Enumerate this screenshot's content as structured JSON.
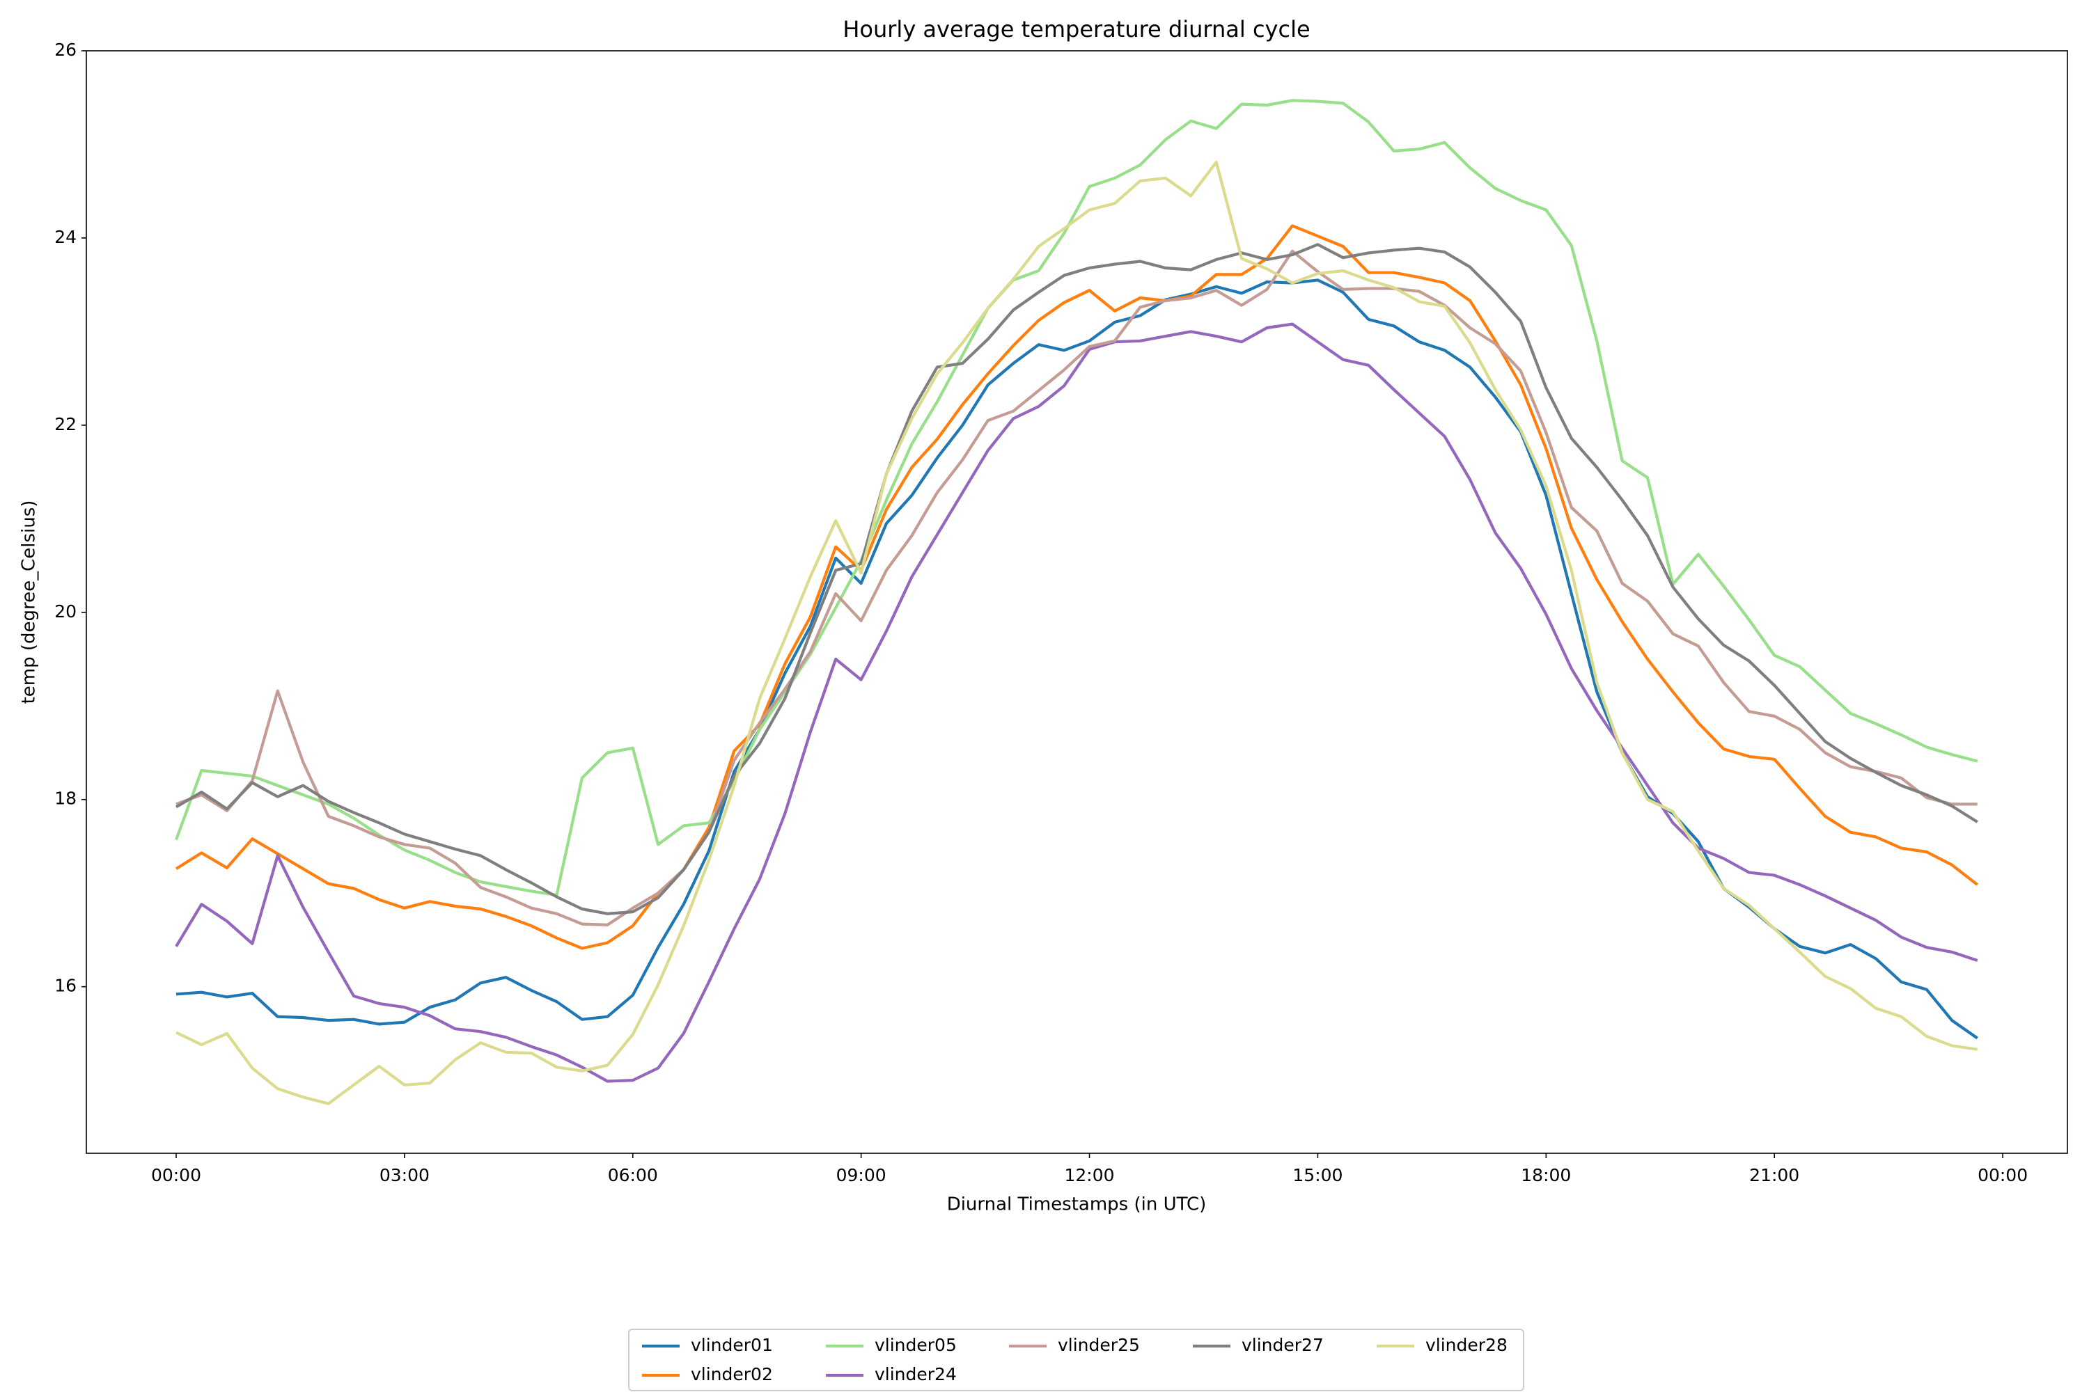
{
  "chart_data": {
    "type": "line",
    "title": "Hourly average temperature diurnal cycle",
    "xlabel": "Diurnal Timestamps (in UTC)",
    "ylabel": "temp (degree_Celsius)",
    "x": [
      0,
      0.333,
      0.667,
      1,
      1.333,
      1.667,
      2,
      2.333,
      2.667,
      3,
      3.333,
      3.667,
      4,
      4.333,
      4.667,
      5,
      5.333,
      5.667,
      6,
      6.333,
      6.667,
      7,
      7.333,
      7.667,
      8,
      8.333,
      8.667,
      9,
      9.333,
      9.667,
      10,
      10.333,
      10.667,
      11,
      11.333,
      11.667,
      12,
      12.333,
      12.667,
      13,
      13.333,
      13.667,
      14,
      14.333,
      14.667,
      15,
      15.333,
      15.667,
      16,
      16.333,
      16.667,
      17,
      17.333,
      17.667,
      18,
      18.333,
      18.667,
      19,
      19.333,
      19.667,
      20,
      20.333,
      20.667,
      21,
      21.333,
      21.667,
      22,
      22.333,
      22.667,
      23,
      23.333,
      23.667
    ],
    "xlim": [
      -1.18,
      24.85
    ],
    "xticks": [
      {
        "value": 0,
        "label": "00:00"
      },
      {
        "value": 3,
        "label": "03:00"
      },
      {
        "value": 6,
        "label": "06:00"
      },
      {
        "value": 9,
        "label": "09:00"
      },
      {
        "value": 12,
        "label": "12:00"
      },
      {
        "value": 15,
        "label": "15:00"
      },
      {
        "value": 18,
        "label": "18:00"
      },
      {
        "value": 21,
        "label": "21:00"
      },
      {
        "value": 24,
        "label": "00:00"
      }
    ],
    "ylim": [
      14.22,
      26
    ],
    "yticks": [
      16,
      18,
      20,
      22,
      24,
      26
    ],
    "grid": false,
    "legend": "below",
    "series": [
      {
        "name": "vlinder01",
        "color": "#1f77b4",
        "values": [
          15.92,
          15.94,
          15.89,
          15.93,
          15.68,
          15.67,
          15.64,
          15.65,
          15.6,
          15.62,
          15.78,
          15.86,
          16.04,
          16.1,
          15.96,
          15.84,
          15.65,
          15.68,
          15.91,
          16.42,
          16.88,
          17.45,
          18.3,
          18.75,
          19.35,
          19.85,
          20.58,
          20.31,
          20.95,
          21.25,
          21.65,
          22.0,
          22.43,
          22.66,
          22.86,
          22.8,
          22.9,
          23.1,
          23.17,
          23.34,
          23.4,
          23.48,
          23.41,
          23.53,
          23.52,
          23.55,
          23.42,
          23.13,
          23.06,
          22.89,
          22.8,
          22.62,
          22.3,
          21.93,
          21.25,
          20.2,
          19.15,
          18.5,
          18.03,
          17.85,
          17.55,
          17.05,
          16.85,
          16.62,
          16.43,
          16.36,
          16.45,
          16.3,
          16.05,
          15.97,
          15.64,
          15.45
        ]
      },
      {
        "name": "vlinder02",
        "color": "#ff7f0e",
        "values": [
          17.26,
          17.43,
          17.27,
          17.58,
          17.42,
          17.26,
          17.1,
          17.05,
          16.93,
          16.84,
          16.91,
          16.86,
          16.83,
          16.75,
          16.65,
          16.52,
          16.41,
          16.47,
          16.65,
          17.0,
          17.25,
          17.7,
          18.52,
          18.8,
          19.45,
          19.95,
          20.7,
          20.45,
          21.1,
          21.55,
          21.85,
          22.22,
          22.55,
          22.85,
          23.12,
          23.31,
          23.44,
          23.22,
          23.36,
          23.33,
          23.38,
          23.61,
          23.61,
          23.78,
          24.13,
          24.02,
          23.91,
          23.63,
          23.63,
          23.58,
          23.52,
          23.33,
          22.9,
          22.43,
          21.75,
          20.9,
          20.35,
          19.9,
          19.5,
          19.15,
          18.82,
          18.54,
          18.46,
          18.43,
          18.12,
          17.82,
          17.65,
          17.6,
          17.48,
          17.44,
          17.3,
          17.09
        ]
      },
      {
        "name": "vlinder05",
        "color": "#98df8a",
        "values": [
          17.57,
          18.31,
          18.28,
          18.25,
          18.15,
          18.05,
          17.95,
          17.8,
          17.62,
          17.46,
          17.35,
          17.22,
          17.12,
          17.07,
          17.02,
          16.98,
          18.23,
          18.5,
          18.55,
          17.52,
          17.72,
          17.75,
          18.2,
          18.75,
          19.15,
          19.55,
          20.05,
          20.55,
          21.2,
          21.8,
          22.25,
          22.75,
          23.25,
          23.55,
          23.65,
          24.05,
          24.55,
          24.64,
          24.78,
          25.05,
          25.25,
          25.17,
          25.43,
          25.42,
          25.47,
          25.46,
          25.44,
          25.24,
          24.93,
          24.95,
          25.02,
          24.75,
          24.53,
          24.4,
          24.3,
          23.92,
          22.9,
          21.62,
          21.44,
          20.3,
          20.62,
          20.28,
          19.92,
          19.54,
          19.42,
          19.17,
          18.92,
          18.81,
          18.69,
          18.56,
          18.48,
          18.41
        ]
      },
      {
        "name": "vlinder24",
        "color": "#9467bd",
        "values": [
          16.43,
          16.88,
          16.7,
          16.46,
          17.4,
          16.85,
          16.37,
          15.9,
          15.82,
          15.78,
          15.69,
          15.55,
          15.52,
          15.46,
          15.36,
          15.27,
          15.14,
          14.99,
          15.0,
          15.13,
          15.5,
          16.05,
          16.62,
          17.15,
          17.85,
          18.72,
          19.5,
          19.28,
          19.8,
          20.38,
          20.83,
          21.28,
          21.73,
          22.07,
          22.2,
          22.42,
          22.81,
          22.89,
          22.9,
          22.95,
          23.0,
          22.95,
          22.89,
          23.04,
          23.08,
          22.89,
          22.7,
          22.64,
          22.38,
          22.13,
          21.88,
          21.42,
          20.85,
          20.47,
          19.98,
          19.4,
          18.95,
          18.55,
          18.15,
          17.75,
          17.48,
          17.37,
          17.22,
          17.19,
          17.09,
          16.97,
          16.84,
          16.71,
          16.53,
          16.42,
          16.37,
          16.28
        ]
      },
      {
        "name": "vlinder25",
        "color": "#c49c94",
        "values": [
          17.95,
          18.05,
          17.88,
          18.2,
          19.16,
          18.4,
          17.82,
          17.72,
          17.6,
          17.52,
          17.48,
          17.32,
          17.06,
          16.96,
          16.84,
          16.78,
          16.67,
          16.66,
          16.84,
          17.0,
          17.25,
          17.65,
          18.42,
          18.82,
          19.18,
          19.58,
          20.2,
          19.91,
          20.45,
          20.82,
          21.28,
          21.63,
          22.05,
          22.15,
          22.37,
          22.59,
          22.84,
          22.9,
          23.26,
          23.33,
          23.36,
          23.44,
          23.28,
          23.45,
          23.86,
          23.64,
          23.45,
          23.46,
          23.46,
          23.43,
          23.28,
          23.04,
          22.87,
          22.58,
          21.92,
          21.12,
          20.87,
          20.31,
          20.12,
          19.77,
          19.64,
          19.25,
          18.94,
          18.89,
          18.75,
          18.5,
          18.35,
          18.3,
          18.23,
          18.02,
          17.95,
          17.95
        ]
      },
      {
        "name": "vlinder27",
        "color": "#7f7f7f",
        "values": [
          17.92,
          18.08,
          17.9,
          18.18,
          18.03,
          18.15,
          17.98,
          17.86,
          17.75,
          17.63,
          17.55,
          17.47,
          17.4,
          17.25,
          17.11,
          16.96,
          16.83,
          16.78,
          16.8,
          16.95,
          17.25,
          17.65,
          18.25,
          18.6,
          19.08,
          19.78,
          20.45,
          20.52,
          21.48,
          22.15,
          22.62,
          22.66,
          22.92,
          23.23,
          23.42,
          23.6,
          23.68,
          23.72,
          23.75,
          23.68,
          23.66,
          23.77,
          23.84,
          23.77,
          23.82,
          23.93,
          23.79,
          23.84,
          23.87,
          23.89,
          23.85,
          23.69,
          23.42,
          23.11,
          22.4,
          21.86,
          21.55,
          21.2,
          20.82,
          20.27,
          19.93,
          19.65,
          19.48,
          19.22,
          18.92,
          18.62,
          18.44,
          18.29,
          18.15,
          18.05,
          17.93,
          17.76
        ]
      },
      {
        "name": "vlinder28",
        "color": "#dbdb8d",
        "values": [
          15.51,
          15.38,
          15.5,
          15.13,
          14.91,
          14.82,
          14.75,
          14.95,
          15.15,
          14.95,
          14.97,
          15.22,
          15.4,
          15.3,
          15.29,
          15.14,
          15.1,
          15.16,
          15.49,
          16.02,
          16.65,
          17.35,
          18.15,
          19.08,
          19.72,
          20.38,
          20.98,
          20.42,
          21.48,
          22.07,
          22.55,
          22.88,
          23.25,
          23.56,
          23.91,
          24.1,
          24.3,
          24.37,
          24.61,
          24.64,
          24.45,
          24.81,
          23.78,
          23.67,
          23.52,
          23.62,
          23.65,
          23.55,
          23.47,
          23.32,
          23.27,
          22.88,
          22.38,
          21.95,
          21.35,
          20.45,
          19.25,
          18.5,
          18.0,
          17.87,
          17.45,
          17.05,
          16.87,
          16.62,
          16.37,
          16.11,
          15.98,
          15.77,
          15.68,
          15.47,
          15.37,
          15.33
        ]
      }
    ]
  }
}
